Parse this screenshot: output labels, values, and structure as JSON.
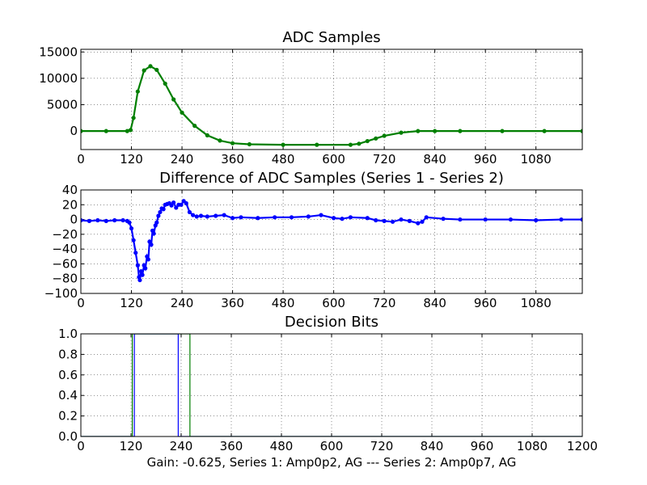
{
  "caption": "Gain: -0.625, Series 1: Amp0p2, AG --- Series 2: Amp0p7, AG",
  "colors": {
    "green": "#007f00",
    "blue": "#0000ff"
  },
  "chart_data": [
    {
      "type": "line",
      "title": "ADC Samples",
      "xlabel": "",
      "ylabel": "",
      "xlim": [
        0,
        1190
      ],
      "ylim": [
        -3500,
        15500
      ],
      "xticks": [
        0,
        120,
        240,
        360,
        480,
        600,
        720,
        840,
        960,
        1080
      ],
      "yticks": [
        0,
        5000,
        10000,
        15000
      ],
      "grid": true,
      "marker": "dot",
      "series": [
        {
          "color": "#007f00",
          "x": [
            0,
            60,
            110,
            118,
            125,
            135,
            150,
            165,
            180,
            200,
            220,
            240,
            270,
            300,
            330,
            360,
            400,
            480,
            560,
            640,
            660,
            680,
            700,
            720,
            760,
            800,
            840,
            900,
            1000,
            1100,
            1190
          ],
          "values": [
            0,
            0,
            0,
            200,
            2500,
            7500,
            11500,
            12300,
            11600,
            9000,
            6000,
            3500,
            1000,
            -800,
            -1800,
            -2300,
            -2500,
            -2600,
            -2600,
            -2600,
            -2400,
            -1900,
            -1400,
            -900,
            -300,
            0,
            0,
            0,
            0,
            0,
            0
          ]
        }
      ]
    },
    {
      "type": "line",
      "title": "Difference of ADC Samples (Series 1 - Series 2)",
      "xlabel": "",
      "ylabel": "",
      "xlim": [
        0,
        1190
      ],
      "ylim": [
        -100,
        40
      ],
      "xticks": [
        0,
        120,
        240,
        360,
        480,
        600,
        720,
        840,
        960,
        1080
      ],
      "yticks": [
        -100,
        -80,
        -60,
        -40,
        -20,
        0,
        20,
        40
      ],
      "grid": true,
      "marker": "dot",
      "series": [
        {
          "color": "#0000ff",
          "x": [
            0,
            20,
            40,
            60,
            80,
            100,
            110,
            115,
            120,
            125,
            130,
            135,
            138,
            140,
            143,
            146,
            150,
            153,
            157,
            160,
            163,
            167,
            170,
            173,
            177,
            180,
            184,
            188,
            192,
            196,
            200,
            205,
            210,
            215,
            220,
            226,
            232,
            238,
            244,
            250,
            258,
            266,
            275,
            285,
            300,
            320,
            340,
            360,
            380,
            420,
            460,
            500,
            540,
            570,
            600,
            620,
            640,
            680,
            700,
            720,
            740,
            760,
            780,
            800,
            810,
            820,
            860,
            900,
            960,
            1020,
            1080,
            1140,
            1190
          ],
          "values": [
            -1,
            -2,
            -1,
            -2,
            -1,
            -1,
            -2,
            -4,
            -12,
            -28,
            -45,
            -62,
            -78,
            -82,
            -70,
            -75,
            -62,
            -66,
            -50,
            -54,
            -30,
            -34,
            -15,
            -19,
            -8,
            -4,
            5,
            10,
            15,
            14,
            20,
            21,
            22,
            19,
            23,
            16,
            20,
            20,
            25,
            22,
            10,
            6,
            4,
            5,
            4,
            5,
            6,
            2,
            3,
            2,
            3,
            3,
            4,
            6,
            2,
            1,
            3,
            2,
            -1,
            -2,
            -3,
            0,
            -2,
            -5,
            -3,
            3,
            1,
            0,
            0,
            0,
            -1,
            0,
            0
          ]
        }
      ]
    },
    {
      "type": "line",
      "title": "Decision Bits",
      "xlabel": "",
      "ylabel": "",
      "xlim": [
        0,
        1200
      ],
      "ylim": [
        0,
        1
      ],
      "xticks": [
        0,
        120,
        240,
        360,
        480,
        600,
        720,
        840,
        960,
        1080,
        1200
      ],
      "yticks": [
        0.0,
        0.2,
        0.4,
        0.6,
        0.8,
        1.0
      ],
      "ytick_labels": [
        "0.0",
        "0.2",
        "0.4",
        "0.6",
        "0.8",
        "1.0"
      ],
      "grid": true,
      "marker": "none",
      "series": [
        {
          "color": "#0000ff",
          "x": [
            0,
            128,
            128,
            233,
            233,
            1200
          ],
          "values": [
            0,
            0,
            1,
            1,
            0,
            0
          ]
        },
        {
          "color": "#007f00",
          "x": [
            0,
            123,
            123,
            261,
            261,
            1200
          ],
          "values": [
            0,
            0,
            1,
            1,
            0,
            0
          ]
        }
      ]
    }
  ]
}
